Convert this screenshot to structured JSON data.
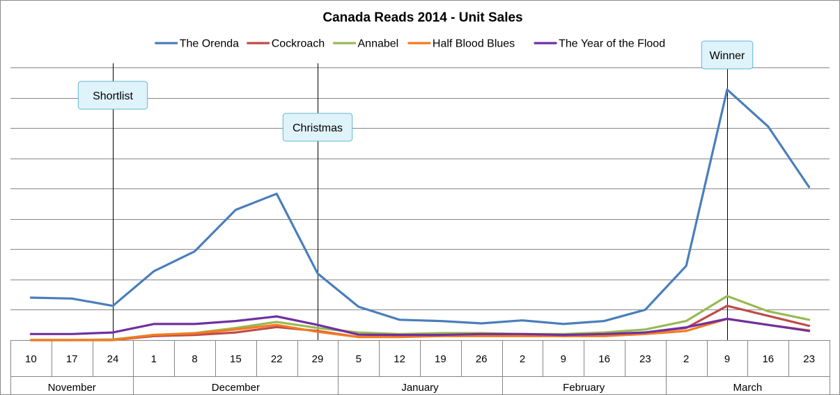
{
  "chart_data": {
    "type": "line",
    "title": "Canada Reads 2014 - Unit Sales",
    "xlabel": "",
    "ylabel": "",
    "ylim": [
      0,
      9
    ],
    "grid": true,
    "legend": "top",
    "categories": [
      "10",
      "17",
      "24",
      "1",
      "8",
      "15",
      "22",
      "29",
      "5",
      "12",
      "19",
      "26",
      "2",
      "9",
      "16",
      "23",
      "2",
      "9",
      "16",
      "23"
    ],
    "months": [
      {
        "name": "November",
        "count": 3
      },
      {
        "name": "December",
        "count": 5
      },
      {
        "name": "January",
        "count": 4
      },
      {
        "name": "February",
        "count": 4
      },
      {
        "name": "March",
        "count": 4
      }
    ],
    "series": [
      {
        "name": "The Orenda",
        "color": "#4a7ebb",
        "values": [
          1.4,
          1.37,
          1.13,
          2.27,
          2.93,
          4.3,
          4.83,
          2.2,
          1.1,
          0.67,
          0.63,
          0.55,
          0.65,
          0.53,
          0.63,
          1.0,
          2.45,
          8.27,
          7.05,
          5.05
        ]
      },
      {
        "name": "Cockroach",
        "color": "#be4b48",
        "values": [
          0.0,
          0.0,
          0.0,
          0.13,
          0.17,
          0.25,
          0.43,
          0.3,
          0.1,
          0.15,
          0.15,
          0.17,
          0.17,
          0.13,
          0.17,
          0.25,
          0.4,
          1.13,
          0.8,
          0.47
        ]
      },
      {
        "name": "Annabel",
        "color": "#98b954",
        "values": [
          0.0,
          0.0,
          0.02,
          0.17,
          0.23,
          0.4,
          0.6,
          0.4,
          0.25,
          0.2,
          0.23,
          0.23,
          0.2,
          0.2,
          0.25,
          0.35,
          0.63,
          1.45,
          0.95,
          0.67
        ]
      },
      {
        "name": "Half Blood Blues",
        "color": "#f47a20",
        "values": [
          0.0,
          0.0,
          0.0,
          0.17,
          0.22,
          0.35,
          0.5,
          0.27,
          0.1,
          0.1,
          0.13,
          0.13,
          0.13,
          0.13,
          0.13,
          0.2,
          0.3,
          0.7,
          0.5,
          0.32
        ]
      },
      {
        "name": "The Year of the Flood",
        "color": "#7030a0",
        "values": [
          0.2,
          0.2,
          0.25,
          0.53,
          0.53,
          0.63,
          0.78,
          0.5,
          0.18,
          0.17,
          0.17,
          0.2,
          0.2,
          0.17,
          0.2,
          0.25,
          0.42,
          0.7,
          0.5,
          0.3
        ]
      }
    ],
    "annotations": [
      {
        "label": "Shortlist",
        "category_index": 2
      },
      {
        "label": "Christmas",
        "category_index": 7
      },
      {
        "label": "Winner",
        "category_index": 17
      }
    ]
  }
}
